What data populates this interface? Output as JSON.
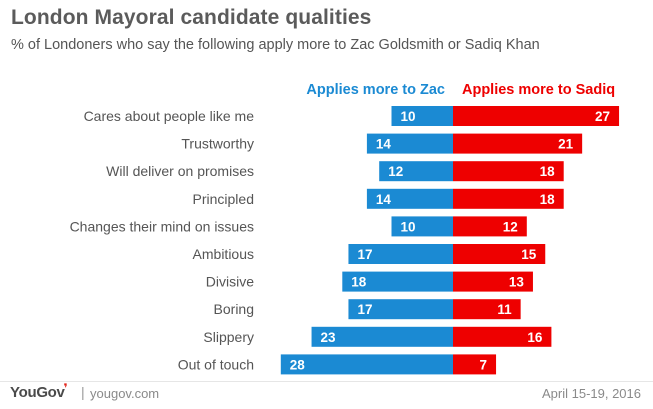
{
  "header": {
    "title": "London Mayoral candidate qualities",
    "subtitle": "% of Londoners who say the following apply more to Zac Goldsmith or Sadiq Khan"
  },
  "footer": {
    "brand": "YouGov",
    "site": "yougov.com",
    "date": "April 15-19, 2016"
  },
  "icons": {
    "logo": "yougov-logo-icon"
  },
  "colors": {
    "zac": "#1b8ad3",
    "sadiq": "#ee0000",
    "label": "#555555",
    "title": "#5b5b5b"
  },
  "chart_data": {
    "type": "bar",
    "orientation": "diverging-horizontal",
    "categories": [
      "Cares about people like me",
      "Trustworthy",
      "Will deliver on promises",
      "Principled",
      "Changes their mind on issues",
      "Ambitious",
      "Divisive",
      "Boring",
      "Slippery",
      "Out of touch"
    ],
    "series": [
      {
        "name": "Applies more to Zac",
        "color": "#1b8ad3",
        "values": [
          10,
          14,
          12,
          14,
          10,
          17,
          18,
          17,
          23,
          28
        ]
      },
      {
        "name": "Applies more to Sadiq",
        "color": "#ee0000",
        "values": [
          27,
          21,
          18,
          18,
          12,
          15,
          13,
          11,
          16,
          7
        ]
      }
    ],
    "title": "London Mayoral candidate qualities",
    "subtitle": "% of Londoners who say the following apply more to Zac Goldsmith or Sadiq Khan",
    "grid": false,
    "legend": "top-center",
    "xlim": [
      0,
      30
    ]
  }
}
